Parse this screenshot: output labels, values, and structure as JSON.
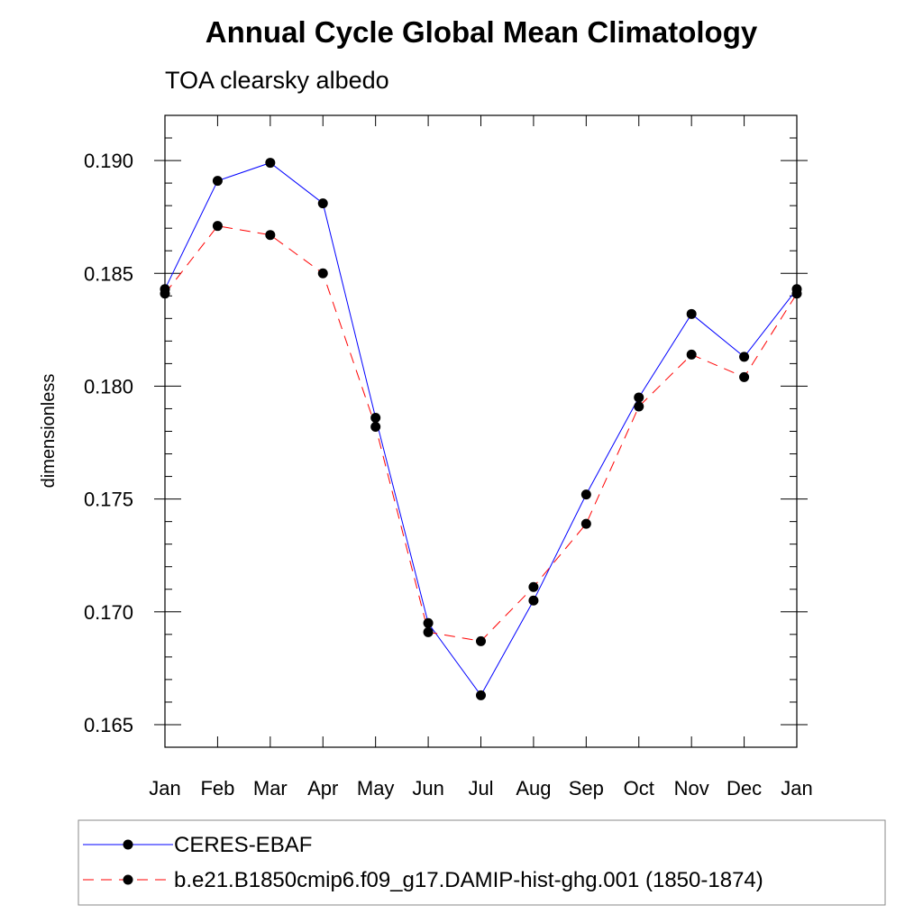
{
  "chart_data": {
    "type": "line",
    "title": "Annual Cycle Global Mean Climatology",
    "subtitle": "TOA clearsky albedo",
    "ylabel": "dimensionless",
    "xlabel": "",
    "ylim": [
      0.164,
      0.192
    ],
    "yticks": [
      0.165,
      0.17,
      0.175,
      0.18,
      0.185,
      0.19
    ],
    "ytick_labels": [
      "0.165",
      "0.170",
      "0.175",
      "0.180",
      "0.185",
      "0.190"
    ],
    "categories": [
      "Jan",
      "Feb",
      "Mar",
      "Apr",
      "May",
      "Jun",
      "Jul",
      "Aug",
      "Sep",
      "Oct",
      "Nov",
      "Dec",
      "Jan"
    ],
    "grid": false,
    "legend_position": "bottom",
    "series": [
      {
        "name": "CERES-EBAF",
        "color": "#0000ff",
        "line_style": "solid",
        "marker": "filled-circle",
        "values": [
          0.1843,
          0.1891,
          0.1899,
          0.1881,
          0.1786,
          0.1695,
          0.1663,
          0.1705,
          0.1752,
          0.1795,
          0.1832,
          0.1813,
          0.1843
        ]
      },
      {
        "name": "b.e21.B1850cmip6.f09_g17.DAMIP-hist-ghg.001 (1850-1874)",
        "color": "#ff0000",
        "line_style": "dashed",
        "marker": "filled-circle",
        "values": [
          0.1841,
          0.1871,
          0.1867,
          0.185,
          0.1782,
          0.1691,
          0.1687,
          0.1711,
          0.1739,
          0.1791,
          0.1814,
          0.1804,
          0.1841
        ]
      }
    ]
  }
}
